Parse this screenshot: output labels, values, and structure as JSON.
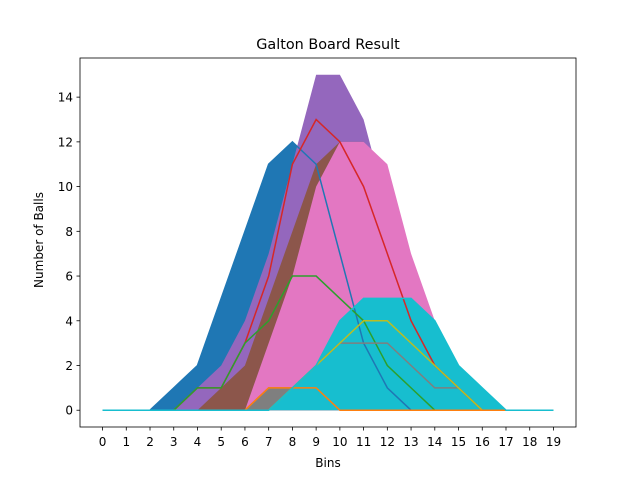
{
  "chart_data": {
    "type": "area",
    "title": "Galton Board Result",
    "xlabel": "Bins",
    "ylabel": "Number of Balls",
    "x": [
      0,
      1,
      2,
      3,
      4,
      5,
      6,
      7,
      8,
      9,
      10,
      11,
      12,
      13,
      14,
      15,
      16,
      17,
      18,
      19
    ],
    "xlim": [
      -0.95,
      19.95
    ],
    "ylim": [
      -0.75,
      15.75
    ],
    "yticks": [
      0,
      2,
      4,
      6,
      8,
      10,
      12,
      14
    ],
    "grid": false,
    "legend": "none",
    "areas": [
      {
        "color": "#1f77b4",
        "values": [
          0,
          0,
          0,
          1,
          2,
          5,
          8,
          11,
          12,
          11,
          7,
          3,
          1,
          0,
          0,
          0,
          0,
          0,
          0,
          0
        ]
      },
      {
        "color": "#9467bd",
        "values": [
          0,
          0,
          0,
          0,
          1,
          2,
          4,
          7,
          11,
          15,
          15,
          13,
          9,
          5,
          2,
          1,
          0,
          0,
          0,
          0
        ]
      },
      {
        "color": "#8c564b",
        "values": [
          0,
          0,
          0,
          0,
          0,
          1,
          2,
          5,
          8,
          11,
          12,
          12,
          9,
          6,
          3,
          1,
          0,
          0,
          0,
          0
        ]
      },
      {
        "color": "#e377c2",
        "values": [
          0,
          0,
          0,
          0,
          0,
          0,
          0,
          3,
          6,
          10,
          12,
          12,
          11,
          7,
          4,
          1,
          0,
          0,
          0,
          0
        ]
      },
      {
        "color": "#7f7f7f",
        "values": [
          0,
          0,
          0,
          0,
          0,
          0,
          0,
          1,
          1,
          1,
          1,
          1,
          1,
          1,
          1,
          1,
          0,
          0,
          0,
          0
        ]
      },
      {
        "color": "#17becf",
        "values": [
          0,
          0,
          0,
          0,
          0,
          0,
          0,
          0,
          1,
          2,
          4,
          5,
          5,
          5,
          4,
          2,
          1,
          0,
          0,
          0
        ]
      }
    ],
    "lines": [
      {
        "color": "#1f77b4",
        "values": [
          0,
          0,
          0,
          1,
          2,
          5,
          8,
          11,
          12,
          11,
          7,
          3,
          1,
          0,
          0,
          0,
          0,
          0,
          0,
          0
        ]
      },
      {
        "color": "#d62728",
        "values": [
          0,
          0,
          0,
          0,
          1,
          1,
          3,
          6,
          11,
          13,
          12,
          10,
          7,
          4,
          2,
          1,
          0,
          0,
          0,
          0
        ]
      },
      {
        "color": "#2ca02c",
        "values": [
          0,
          0,
          0,
          0,
          1,
          1,
          3,
          4,
          6,
          6,
          5,
          4,
          2,
          1,
          0,
          0,
          0,
          0,
          0,
          0
        ]
      },
      {
        "color": "#7f7f7f",
        "values": [
          0,
          0,
          0,
          0,
          0,
          0,
          0,
          1,
          1,
          2,
          3,
          3,
          3,
          2,
          1,
          1,
          0,
          0,
          0,
          0
        ]
      },
      {
        "color": "#bcbd22",
        "values": [
          0,
          0,
          0,
          0,
          0,
          0,
          0,
          0,
          1,
          2,
          3,
          4,
          4,
          3,
          2,
          1,
          0,
          0,
          0,
          0
        ]
      },
      {
        "color": "#ff7f0e",
        "values": [
          0,
          0,
          0,
          0,
          0,
          0,
          0,
          1,
          1,
          1,
          0,
          0,
          0,
          0,
          0,
          0,
          0,
          0,
          0,
          0
        ]
      },
      {
        "color": "#17becf",
        "values": [
          0,
          0,
          0,
          0,
          0,
          0,
          0,
          0,
          1,
          2,
          4,
          5,
          5,
          5,
          4,
          2,
          1,
          0,
          0,
          0
        ]
      }
    ]
  }
}
